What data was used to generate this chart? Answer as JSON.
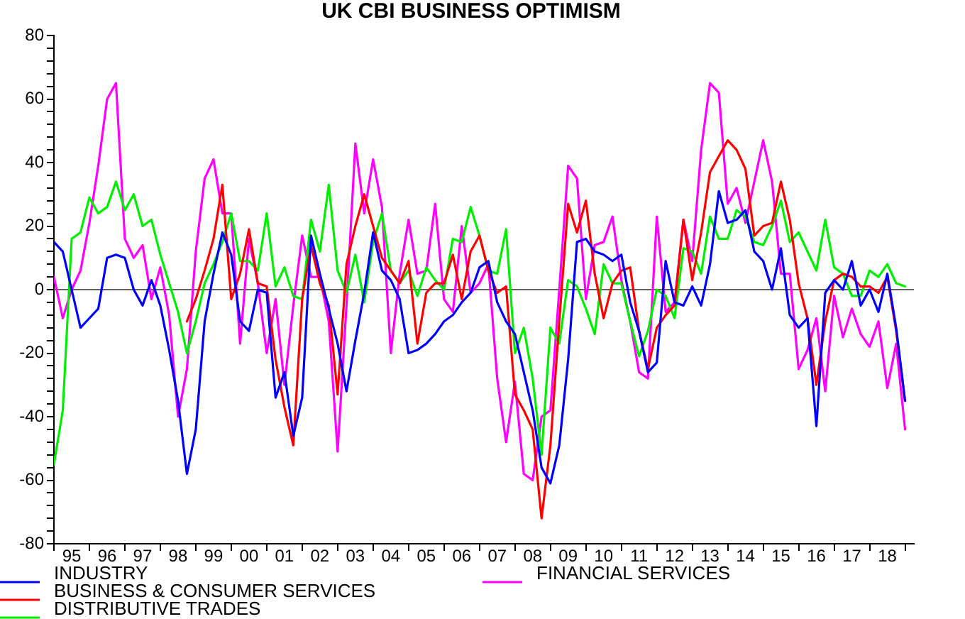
{
  "chart_data": {
    "type": "line",
    "title": "UK CBI BUSINESS OPTIMISM",
    "categories": [
      null,
      null,
      "95",
      null,
      null,
      null,
      "96",
      null,
      null,
      null,
      "97",
      null,
      null,
      null,
      "98",
      null,
      null,
      null,
      "99",
      null,
      null,
      null,
      "00",
      null,
      null,
      null,
      "01",
      null,
      null,
      null,
      "02",
      null,
      null,
      null,
      "03",
      null,
      null,
      null,
      "04",
      null,
      null,
      null,
      "05",
      null,
      null,
      null,
      "06",
      null,
      null,
      null,
      "07",
      null,
      null,
      null,
      "08",
      null,
      null,
      null,
      "09",
      null,
      null,
      null,
      "10",
      null,
      null,
      null,
      "11",
      null,
      null,
      null,
      "12",
      null,
      null,
      null,
      "13",
      null,
      null,
      null,
      "14",
      null,
      null,
      null,
      "15",
      null,
      null,
      null,
      "16",
      null,
      null,
      null,
      "17",
      null,
      null,
      null,
      "18",
      null,
      null
    ],
    "ylim": [
      -80,
      80
    ],
    "yticks": [
      -80,
      {
        "value": -76,
        "label": null
      },
      {
        "value": -72,
        "label": null
      },
      {
        "value": -68,
        "label": null
      },
      {
        "value": -64,
        "label": null
      },
      -60,
      {
        "value": -56,
        "label": null
      },
      {
        "value": -52,
        "label": null
      },
      {
        "value": -48,
        "label": null
      },
      {
        "value": -44,
        "label": null
      },
      -40,
      {
        "value": -36,
        "label": null
      },
      {
        "value": -32,
        "label": null
      },
      {
        "value": -28,
        "label": null
      },
      {
        "value": -24,
        "label": null
      },
      -20,
      {
        "value": -16,
        "label": null
      },
      {
        "value": -12,
        "label": null
      },
      {
        "value": -8,
        "label": null
      },
      {
        "value": -4,
        "label": null
      },
      0,
      {
        "value": 4,
        "label": null
      },
      {
        "value": 8,
        "label": null
      },
      {
        "value": 12,
        "label": null
      },
      {
        "value": 16,
        "label": null
      },
      20,
      {
        "value": 24,
        "label": null
      },
      {
        "value": 28,
        "label": null
      },
      {
        "value": 32,
        "label": null
      },
      {
        "value": 36,
        "label": null
      },
      40,
      {
        "value": 44,
        "label": null
      },
      {
        "value": 48,
        "label": null
      },
      {
        "value": 52,
        "label": null
      },
      {
        "value": 56,
        "label": null
      },
      60,
      {
        "value": 64,
        "label": null
      },
      {
        "value": 68,
        "label": null
      },
      {
        "value": 72,
        "label": null
      },
      {
        "value": 76,
        "label": null
      },
      80
    ],
    "ref_lines": [
      {
        "axis": "y",
        "value": 0,
        "color": "#606060"
      }
    ],
    "legend": "bottom",
    "series": [
      {
        "name": "INDUSTRY",
        "color": "#0000ff",
        "values": [
          15,
          12,
          0,
          -12,
          -9,
          -6,
          10,
          11,
          10,
          0,
          -5,
          3,
          -5,
          -19,
          -35,
          -58,
          -44,
          -10,
          5,
          18,
          11,
          -10,
          -13,
          0,
          -1,
          -34,
          -26,
          -46,
          -34,
          17,
          5,
          -6,
          -17,
          -32,
          -16,
          -1,
          18,
          6,
          3,
          -3,
          -20,
          -19,
          -17,
          -14,
          -10,
          -8,
          -4,
          -1,
          7,
          9,
          -4,
          -10,
          -14,
          -26,
          -38,
          -56,
          -61,
          -49,
          -22,
          15,
          16,
          12,
          11,
          9,
          11,
          -4,
          -13,
          -26,
          -23,
          9,
          -4,
          -5,
          1,
          -5,
          8,
          31,
          21,
          22,
          25,
          12,
          9,
          0,
          13,
          -8,
          -12,
          -9,
          -43,
          -1,
          3,
          0,
          9,
          -5,
          0,
          -7,
          5,
          -12,
          -35
        ]
      },
      {
        "name": "BUSINESS & CONSUMER SERVICES",
        "color": "#ff0000",
        "values": [
          null,
          null,
          null,
          null,
          null,
          null,
          null,
          null,
          null,
          null,
          null,
          null,
          null,
          null,
          null,
          -10,
          -3,
          6,
          16,
          33,
          -3,
          5,
          19,
          2,
          1,
          -22,
          -37,
          -49,
          -3,
          14,
          2,
          -5,
          -33,
          8,
          20,
          30,
          20,
          10,
          6,
          2,
          9,
          -17,
          -1,
          2,
          2,
          11,
          -3,
          12,
          17,
          6,
          -1,
          1,
          -33,
          -38,
          -44,
          -72,
          -49,
          -10,
          27,
          18,
          28,
          5,
          -9,
          2,
          6,
          7,
          -13,
          -25,
          -12,
          -8,
          -5,
          22,
          3,
          18,
          37,
          42,
          47,
          44,
          38,
          17,
          20,
          21,
          34,
          22,
          2,
          -9,
          -30,
          -10,
          3,
          5,
          4,
          1,
          1,
          -1,
          4,
          -13,
          -35
        ]
      },
      {
        "name": "DISTRIBUTIVE TRADES",
        "color": "#00ee00",
        "values": [
          -55,
          -38,
          16,
          18,
          29,
          24,
          26,
          34,
          25,
          30,
          20,
          22,
          11,
          2,
          -7,
          -20,
          -10,
          2,
          8,
          15,
          24,
          9,
          9,
          6,
          24,
          1,
          7,
          -2,
          -3,
          22,
          12,
          33,
          6,
          -1,
          11,
          -4,
          15,
          24,
          6,
          2,
          6,
          -2,
          7,
          3,
          0,
          16,
          15,
          26,
          17,
          6,
          5,
          19,
          -20,
          -12,
          -28,
          -52,
          -12,
          -17,
          3,
          1,
          -6,
          -14,
          8,
          2,
          2,
          -10,
          -21,
          -13,
          0,
          -2,
          -9,
          13,
          12,
          5,
          23,
          16,
          16,
          25,
          23,
          15,
          14,
          20,
          28,
          15,
          18,
          12,
          6,
          22,
          7,
          5,
          -2,
          -2,
          6,
          4,
          8,
          2,
          1
        ]
      },
      {
        "name": "FINANCIAL SERVICES",
        "color": "#ff00ff",
        "values": [
          4,
          -9,
          0,
          6,
          21,
          39,
          60,
          65,
          16,
          10,
          14,
          -3,
          7,
          -8,
          -40,
          -25,
          12,
          35,
          41,
          24,
          24,
          -17,
          16,
          2,
          -20,
          -3,
          -30,
          -5,
          17,
          4,
          4,
          -10,
          -51,
          -5,
          46,
          24,
          41,
          26,
          -20,
          5,
          22,
          5,
          6,
          27,
          -3,
          -7,
          20,
          -1,
          2,
          8,
          -28,
          -48,
          -29,
          -58,
          -60,
          -40,
          -38,
          0,
          39,
          35,
          -3,
          14,
          15,
          23,
          3,
          -10,
          -26,
          -28,
          23,
          -7,
          -4,
          22,
          9,
          44,
          65,
          62,
          27,
          32,
          21,
          34,
          47,
          34,
          5,
          5,
          -25,
          -19,
          -9,
          -32,
          -2,
          -15,
          -6,
          -14,
          -18,
          -10,
          -31,
          -17,
          -44
        ]
      }
    ]
  }
}
